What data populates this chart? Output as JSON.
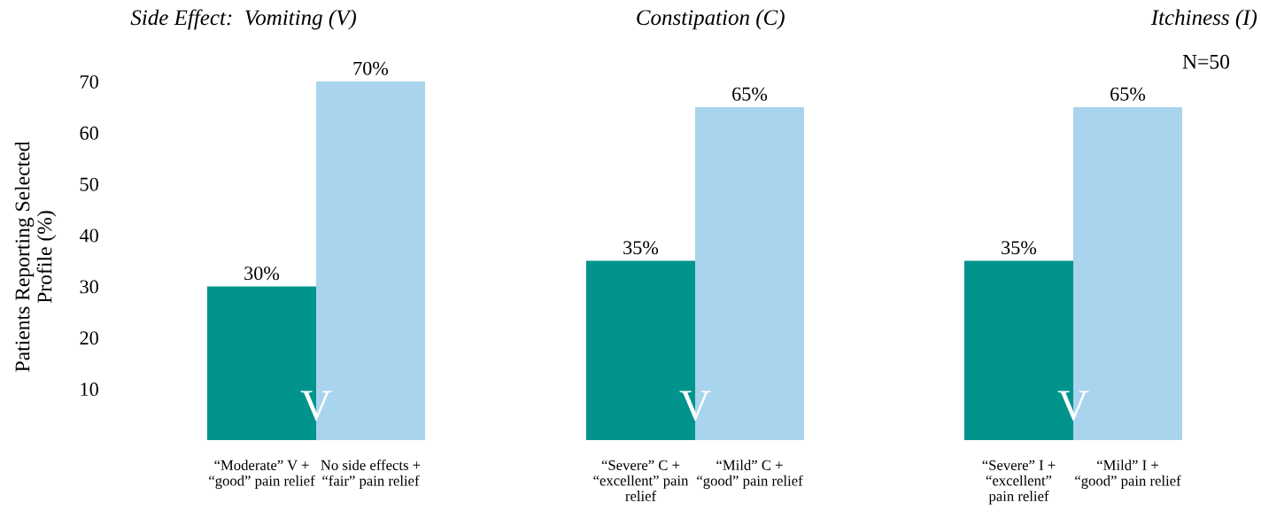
{
  "chart_data": [
    {
      "type": "bar",
      "title": "Side Effect:  Vomiting (V)",
      "ylabel": "Patients Reporting Selected\nProfile (%)",
      "categories": [
        "“Moderate” V +\n“good” pain relief",
        "No side effects +\n“fair” pain relief"
      ],
      "values": [
        30,
        70
      ],
      "colors": [
        "#00948c",
        "#a8d4ee"
      ],
      "value_labels": [
        "30%",
        "70%"
      ],
      "ylim": [
        0,
        70
      ],
      "yticks": [
        10,
        20,
        30,
        40,
        50,
        60,
        70
      ],
      "grid": false,
      "annotations": [
        "V"
      ]
    },
    {
      "type": "bar",
      "title": "Constipation (C)",
      "categories": [
        "“Severe” C +\n“excellent” pain\nrelief",
        "“Mild” C +\n“good” pain relief"
      ],
      "values": [
        35,
        65
      ],
      "colors": [
        "#00948c",
        "#a8d4ee"
      ],
      "value_labels": [
        "35%",
        "65%"
      ],
      "ylim": [
        0,
        70
      ],
      "yticks": [
        10,
        20,
        30,
        40,
        50,
        60,
        70
      ],
      "tick_labels": "x",
      "grid": false,
      "annotations": [
        "V"
      ]
    },
    {
      "type": "bar",
      "title": "Itchiness (I)",
      "categories": [
        "“Severe” I +\n“excellent”\npain relief",
        "“Mild” I +\n“good” pain relief"
      ],
      "values": [
        35,
        65
      ],
      "colors": [
        "#00948c",
        "#a8d4ee"
      ],
      "value_labels": [
        "35%",
        "65%"
      ],
      "ylim": [
        0,
        70
      ],
      "yticks": [
        10,
        20,
        30,
        40,
        50,
        60,
        70
      ],
      "tick_labels": "x",
      "grid": false,
      "annotations": [
        "V",
        "N=50"
      ]
    }
  ]
}
